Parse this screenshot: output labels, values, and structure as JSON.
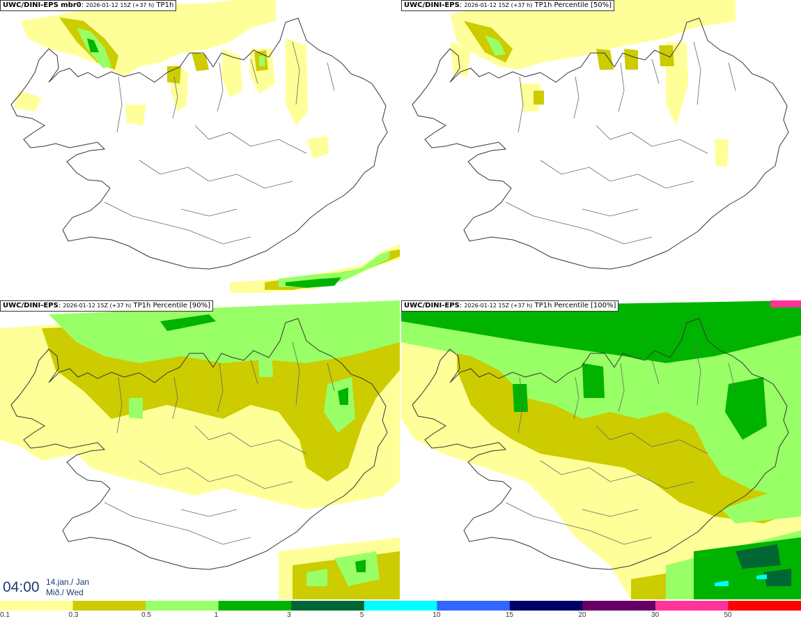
{
  "panels": [
    {
      "model": "UWC/DINI-EPS mbr0",
      "meta": "2026-01-12 15Z (+37 h)",
      "field": "TP1h"
    },
    {
      "model": "UWC/DINI-EPS",
      "meta": "2026-01-12 15Z (+37 h)",
      "field": "TP1h Percentile [50%]"
    },
    {
      "model": "UWC/DINI-EPS",
      "meta": "2026-01-12 15Z (+37 h)",
      "field": "TP1h Percentile [90%]"
    },
    {
      "model": "UWC/DINI-EPS",
      "meta": "2026-01-12 15Z (+37 h)",
      "field": "TP1h Percentile [100%]"
    }
  ],
  "valid_time": {
    "time": "04:00",
    "date_line1": "14.jan./ Jan",
    "date_line2": "Mið./ Wed"
  },
  "colorbar": {
    "labels": [
      "0.1",
      "0.3",
      "0.5",
      "1",
      "3",
      "5",
      "10",
      "15",
      "20",
      "30",
      "50"
    ],
    "colors": [
      "#ffff99",
      "#cccc00",
      "#99ff66",
      "#00b300",
      "#006633",
      "#00ffff",
      "#3366ff",
      "#000066",
      "#660066",
      "#ff3399",
      "#ff0000"
    ]
  }
}
